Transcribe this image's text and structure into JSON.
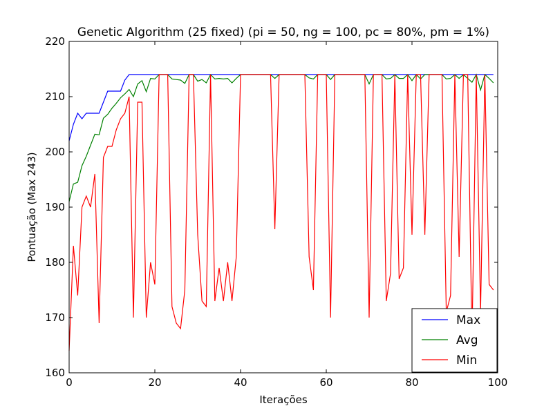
{
  "chart_data": {
    "type": "line",
    "title": "Genetic Algorithm (25 fixed) (pi = 50, ng = 100, pc = 80%, pm = 1%)",
    "xlabel": "Iterações",
    "ylabel": "Pontuação (Max 243)",
    "xlim": [
      0,
      100
    ],
    "ylim": [
      160,
      220
    ],
    "xticks": [
      0,
      20,
      40,
      60,
      80,
      100
    ],
    "yticks": [
      160,
      170,
      180,
      190,
      200,
      210,
      220
    ],
    "grid": false,
    "legend_position": "lower-right",
    "x": [
      0,
      1,
      2,
      3,
      4,
      5,
      6,
      7,
      8,
      9,
      10,
      11,
      12,
      13,
      14,
      15,
      16,
      17,
      18,
      19,
      20,
      21,
      22,
      23,
      24,
      25,
      26,
      27,
      28,
      29,
      30,
      31,
      32,
      33,
      34,
      35,
      36,
      37,
      38,
      39,
      40,
      41,
      42,
      43,
      44,
      45,
      46,
      47,
      48,
      49,
      50,
      51,
      52,
      53,
      54,
      55,
      56,
      57,
      58,
      59,
      60,
      61,
      62,
      63,
      64,
      65,
      66,
      67,
      68,
      69,
      70,
      71,
      72,
      73,
      74,
      75,
      76,
      77,
      78,
      79,
      80,
      81,
      82,
      83,
      84,
      85,
      86,
      87,
      88,
      89,
      90,
      91,
      92,
      93,
      94,
      95,
      96,
      97,
      98,
      99
    ],
    "series": [
      {
        "name": "Max",
        "color": "#0000ff",
        "values": [
          202,
          205,
          207,
          206,
          207,
          207,
          207,
          207,
          209,
          211,
          211,
          211,
          211,
          213,
          214,
          214,
          214,
          214,
          214,
          214,
          214,
          214,
          214,
          214,
          214,
          214,
          214,
          214,
          214,
          214,
          214,
          214,
          214,
          214,
          214,
          214,
          214,
          214,
          214,
          214,
          214,
          214,
          214,
          214,
          214,
          214,
          214,
          214,
          214,
          214,
          214,
          214,
          214,
          214,
          214,
          214,
          214,
          214,
          214,
          214,
          214,
          214,
          214,
          214,
          214,
          214,
          214,
          214,
          214,
          214,
          214,
          214,
          214,
          214,
          214,
          214,
          214,
          214,
          214,
          214,
          214,
          214,
          214,
          214,
          214,
          214,
          214,
          214,
          214,
          214,
          214,
          214,
          214,
          214,
          214,
          214,
          214,
          214,
          214,
          214
        ]
      },
      {
        "name": "Avg",
        "color": "#008000",
        "values": [
          191,
          194.2,
          194.5,
          197.5,
          199.2,
          201.2,
          203.2,
          203.1,
          206.1,
          206.8,
          207.9,
          208.8,
          209.8,
          210.5,
          211.3,
          210,
          212.3,
          212.9,
          210.9,
          213.3,
          213.2,
          214,
          214,
          214,
          213.2,
          213.1,
          213,
          212.4,
          214,
          214,
          212.8,
          213.1,
          212.5,
          214,
          213.2,
          213.3,
          213.2,
          213.3,
          212.5,
          213.3,
          214,
          214,
          214,
          214,
          214,
          214,
          214,
          214,
          213.3,
          214,
          214,
          214,
          214,
          214,
          214,
          214,
          213.4,
          213.2,
          214,
          214,
          214,
          213.1,
          214,
          214,
          214,
          214,
          214,
          214,
          214,
          214,
          212.3,
          214,
          214,
          214,
          213.2,
          213.3,
          214,
          213.3,
          213.3,
          214,
          212.9,
          214,
          213.2,
          214,
          214,
          214,
          214,
          214,
          213.2,
          213.3,
          214,
          213.3,
          214,
          213.3,
          212.6,
          214,
          211.2,
          214,
          213.3,
          212.5
        ]
      },
      {
        "name": "Min",
        "color": "#ff0000",
        "values": [
          164,
          183,
          174,
          190,
          192,
          190,
          196,
          169,
          199,
          201,
          201,
          204,
          206,
          207,
          210,
          170,
          209,
          209,
          170,
          180,
          176,
          214,
          214,
          214,
          172,
          169,
          168,
          175,
          214,
          214,
          185,
          173,
          172,
          214,
          173,
          179,
          173,
          180,
          173,
          181,
          214,
          214,
          214,
          214,
          214,
          214,
          214,
          214,
          186,
          214,
          214,
          214,
          214,
          214,
          214,
          214,
          181,
          175,
          214,
          214,
          214,
          170,
          214,
          214,
          214,
          214,
          214,
          214,
          214,
          214,
          170,
          214,
          214,
          214,
          173,
          178,
          214,
          177,
          179,
          214,
          185,
          214,
          214,
          185,
          214,
          214,
          214,
          214,
          171,
          174,
          214,
          181,
          214,
          214,
          166,
          214,
          171,
          214,
          176,
          175
        ]
      }
    ]
  }
}
